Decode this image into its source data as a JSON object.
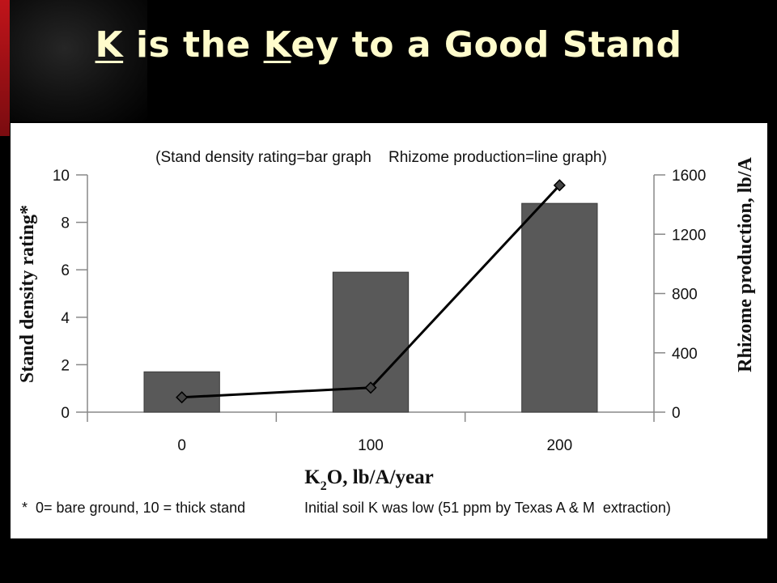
{
  "slide": {
    "title_parts": [
      "K",
      " is the ",
      "K",
      "ey to a Good Stand"
    ]
  },
  "chart_data": {
    "type": "bar",
    "subtitle": "(Stand density rating=bar graph    Rhizome production=line graph)",
    "categories": [
      "0",
      "100",
      "200"
    ],
    "xlabel": {
      "main": "K",
      "sub": "2",
      "rest": "O, lb/A/year"
    },
    "ylabel": "Stand density rating*",
    "ylabel_right": "Rhizome production, lb/A",
    "ylim": [
      0,
      10
    ],
    "ylim_right": [
      0,
      1600
    ],
    "yticks": [
      0,
      2,
      4,
      6,
      8,
      10
    ],
    "yticks_right": [
      0,
      400,
      800,
      1200,
      1600
    ],
    "series": [
      {
        "type": "bar",
        "values": [
          1.7,
          5.9,
          8.8
        ],
        "color": "#595959"
      },
      {
        "type": "line",
        "values": [
          100,
          165,
          1530
        ],
        "color": "#000000",
        "marker": "diamond",
        "axis": "right"
      }
    ],
    "footnote_left": "*  0= bare ground, 10 = thick stand",
    "footnote_right": "Initial soil K was low (51 ppm by Texas A & M  extraction)",
    "grid": false
  }
}
